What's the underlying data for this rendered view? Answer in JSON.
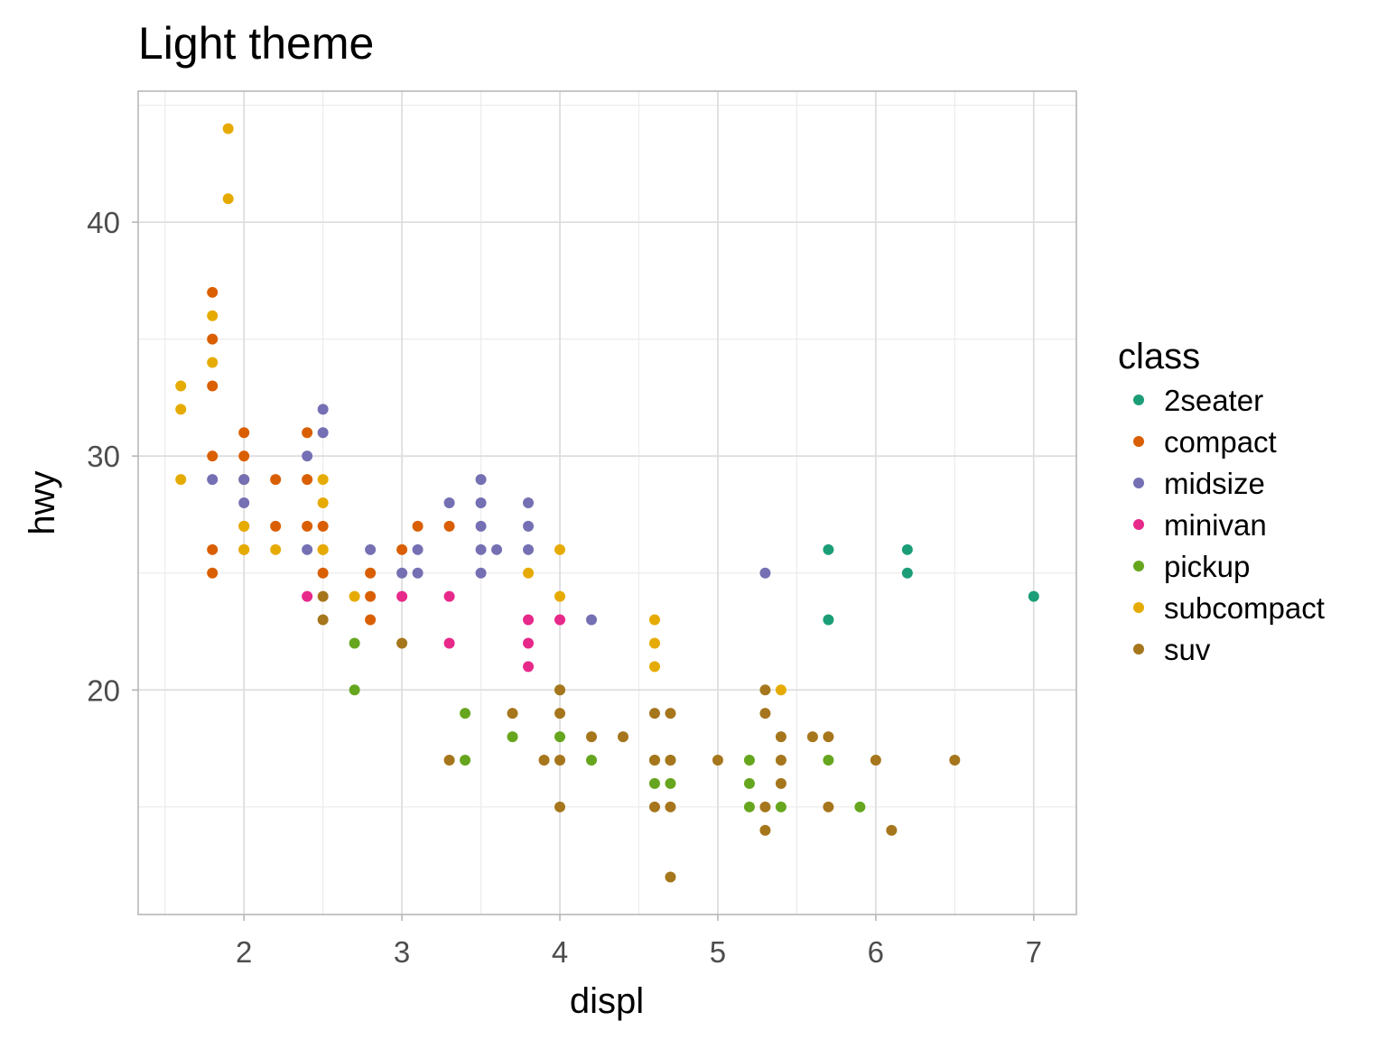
{
  "chart_data": {
    "type": "scatter",
    "title": "Light theme",
    "xlabel": "displ",
    "ylabel": "hwy",
    "xlim": [
      1.33,
      7.27
    ],
    "ylim": [
      10.4,
      45.6
    ],
    "x_ticks": [
      2,
      3,
      4,
      5,
      6,
      7
    ],
    "y_ticks": [
      20,
      30,
      40
    ],
    "grid": true,
    "legend": {
      "title": "class",
      "position": "right",
      "entries": [
        {
          "name": "2seater",
          "color": "#1b9e77"
        },
        {
          "name": "compact",
          "color": "#d95f02"
        },
        {
          "name": "midsize",
          "color": "#7570b3"
        },
        {
          "name": "minivan",
          "color": "#e7298a"
        },
        {
          "name": "pickup",
          "color": "#66a61e"
        },
        {
          "name": "subcompact",
          "color": "#e6ab02"
        },
        {
          "name": "suv",
          "color": "#a6761d"
        }
      ]
    },
    "series": [
      {
        "name": "2seater",
        "points": [
          [
            5.7,
            26
          ],
          [
            5.7,
            23
          ],
          [
            6.2,
            26
          ],
          [
            6.2,
            25
          ],
          [
            7.0,
            24
          ]
        ]
      },
      {
        "name": "compact",
        "points": [
          [
            1.8,
            37
          ],
          [
            1.8,
            35
          ],
          [
            1.8,
            33
          ],
          [
            1.8,
            30
          ],
          [
            1.8,
            26
          ],
          [
            1.8,
            25
          ],
          [
            2.0,
            31
          ],
          [
            2.0,
            30
          ],
          [
            2.0,
            29
          ],
          [
            2.0,
            27
          ],
          [
            2.0,
            26
          ],
          [
            2.2,
            29
          ],
          [
            2.2,
            27
          ],
          [
            2.4,
            31
          ],
          [
            2.4,
            29
          ],
          [
            2.4,
            27
          ],
          [
            2.5,
            27
          ],
          [
            2.5,
            26
          ],
          [
            2.5,
            25
          ],
          [
            2.8,
            25
          ],
          [
            2.8,
            24
          ],
          [
            2.8,
            23
          ],
          [
            3.0,
            26
          ],
          [
            3.1,
            27
          ],
          [
            3.3,
            27
          ]
        ]
      },
      {
        "name": "midsize",
        "points": [
          [
            1.8,
            29
          ],
          [
            2.0,
            29
          ],
          [
            2.0,
            28
          ],
          [
            2.4,
            30
          ],
          [
            2.4,
            26
          ],
          [
            2.5,
            32
          ],
          [
            2.5,
            31
          ],
          [
            2.8,
            26
          ],
          [
            3.0,
            25
          ],
          [
            3.1,
            26
          ],
          [
            3.1,
            25
          ],
          [
            3.3,
            28
          ],
          [
            3.5,
            29
          ],
          [
            3.5,
            28
          ],
          [
            3.5,
            27
          ],
          [
            3.5,
            26
          ],
          [
            3.5,
            25
          ],
          [
            3.6,
            26
          ],
          [
            3.8,
            28
          ],
          [
            3.8,
            27
          ],
          [
            3.8,
            26
          ],
          [
            4.2,
            23
          ],
          [
            5.3,
            25
          ]
        ]
      },
      {
        "name": "minivan",
        "points": [
          [
            2.4,
            24
          ],
          [
            3.0,
            24
          ],
          [
            3.3,
            24
          ],
          [
            3.3,
            22
          ],
          [
            3.8,
            23
          ],
          [
            3.8,
            22
          ],
          [
            3.8,
            21
          ],
          [
            4.0,
            23
          ]
        ]
      },
      {
        "name": "pickup",
        "points": [
          [
            2.7,
            22
          ],
          [
            2.7,
            20
          ],
          [
            3.4,
            19
          ],
          [
            3.4,
            17
          ],
          [
            3.7,
            18
          ],
          [
            4.0,
            20
          ],
          [
            4.0,
            18
          ],
          [
            4.2,
            17
          ],
          [
            4.6,
            17
          ],
          [
            4.6,
            16
          ],
          [
            4.7,
            17
          ],
          [
            4.7,
            16
          ],
          [
            5.2,
            17
          ],
          [
            5.2,
            16
          ],
          [
            5.2,
            15
          ],
          [
            5.4,
            15
          ],
          [
            5.7,
            17
          ],
          [
            5.9,
            15
          ]
        ]
      },
      {
        "name": "subcompact",
        "points": [
          [
            1.6,
            33
          ],
          [
            1.6,
            32
          ],
          [
            1.6,
            29
          ],
          [
            1.8,
            36
          ],
          [
            1.8,
            34
          ],
          [
            1.9,
            44
          ],
          [
            1.9,
            41
          ],
          [
            2.0,
            27
          ],
          [
            2.0,
            26
          ],
          [
            2.2,
            26
          ],
          [
            2.5,
            29
          ],
          [
            2.5,
            28
          ],
          [
            2.5,
            26
          ],
          [
            2.7,
            24
          ],
          [
            3.8,
            25
          ],
          [
            4.0,
            26
          ],
          [
            4.0,
            24
          ],
          [
            4.6,
            23
          ],
          [
            4.6,
            22
          ],
          [
            4.6,
            21
          ],
          [
            5.4,
            20
          ]
        ]
      },
      {
        "name": "suv",
        "points": [
          [
            2.5,
            24
          ],
          [
            2.5,
            23
          ],
          [
            3.0,
            22
          ],
          [
            3.3,
            17
          ],
          [
            3.7,
            19
          ],
          [
            3.9,
            17
          ],
          [
            4.0,
            20
          ],
          [
            4.0,
            19
          ],
          [
            4.0,
            17
          ],
          [
            4.0,
            15
          ],
          [
            4.2,
            18
          ],
          [
            4.4,
            18
          ],
          [
            4.6,
            19
          ],
          [
            4.6,
            17
          ],
          [
            4.6,
            15
          ],
          [
            4.7,
            19
          ],
          [
            4.7,
            17
          ],
          [
            4.7,
            15
          ],
          [
            4.7,
            12
          ],
          [
            5.0,
            17
          ],
          [
            5.3,
            20
          ],
          [
            5.3,
            19
          ],
          [
            5.3,
            15
          ],
          [
            5.3,
            14
          ],
          [
            5.4,
            18
          ],
          [
            5.4,
            17
          ],
          [
            5.4,
            16
          ],
          [
            5.6,
            18
          ],
          [
            5.7,
            18
          ],
          [
            5.7,
            15
          ],
          [
            6.0,
            17
          ],
          [
            6.1,
            14
          ],
          [
            6.5,
            17
          ]
        ]
      }
    ]
  }
}
